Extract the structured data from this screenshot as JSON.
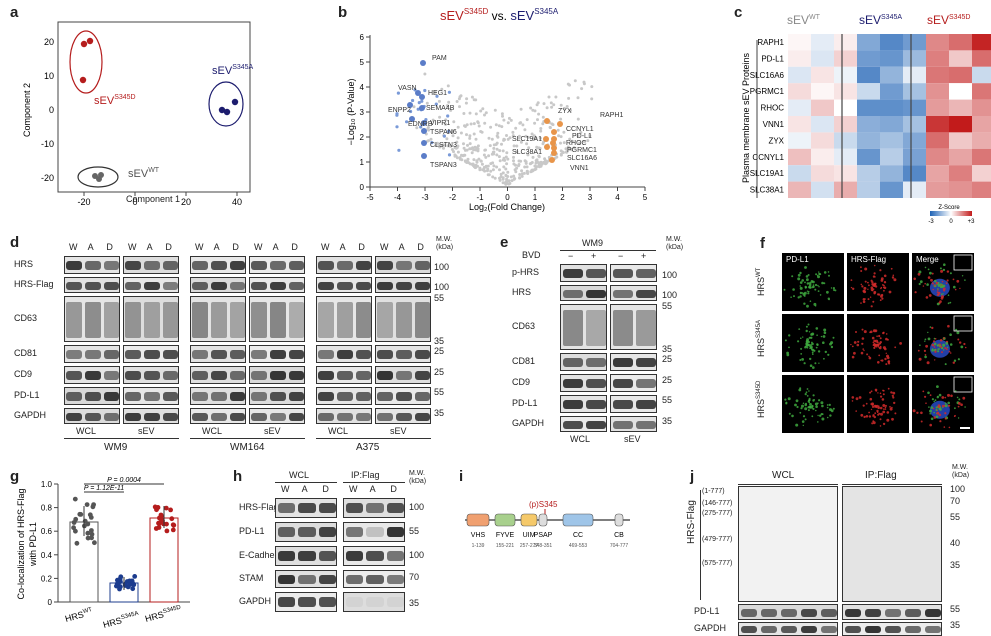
{
  "panels": {
    "a": {
      "letter": "a",
      "xlabel": "Component 1",
      "ylabel": "Component 2",
      "xticks": [
        "-20",
        "0",
        "20",
        "40"
      ],
      "yticks": [
        "20",
        "10",
        "0",
        "-10",
        "-20"
      ],
      "groups": [
        {
          "name": "sEV",
          "sup": "S345D",
          "color": "#b51d1d"
        },
        {
          "name": "sEV",
          "sup": "S345A",
          "color": "#1c1c6e"
        },
        {
          "name": "sEV",
          "sup": "WT",
          "color": "#555555"
        }
      ]
    },
    "b": {
      "letter": "b",
      "title_left": "sEV",
      "title_left_sup": "S345D",
      "title_vs": "vs.",
      "title_right": "sEV",
      "title_right_sup": "S345A",
      "xlabel": "Log₂(Fold Change)",
      "ylabel": "−Log₁₀ (P-Value)",
      "xticks": [
        "-5",
        "-4",
        "-3",
        "-2",
        "-1",
        "0",
        "1",
        "2",
        "3",
        "4",
        "5"
      ],
      "yticks": [
        "6",
        "5",
        "4",
        "3",
        "2",
        "1",
        "0"
      ],
      "down_labels": [
        "PAM",
        "VASN",
        "HEG1",
        "ENPP2",
        "SEMA4B",
        "EDNRB",
        "VIPR1",
        "TSPAN6",
        "CLSTN3",
        "TSPAN3"
      ],
      "up_labels": [
        "ZYX",
        "RAPH1",
        "CCNYL1",
        "PD-L1",
        "SLC19A1",
        "RHOC",
        "SLC38A1",
        "PGRMC1",
        "SLC16A6",
        "VNN1"
      ]
    },
    "c": {
      "letter": "c",
      "col_groups": [
        {
          "name": "sEV",
          "sup": "WT",
          "color": "#888888"
        },
        {
          "name": "sEV",
          "sup": "S345A",
          "color": "#1c1c6e"
        },
        {
          "name": "sEV",
          "sup": "S345D",
          "color": "#b51d1d"
        }
      ],
      "rows": [
        "RAPH1",
        "PD-L1",
        "SLC16A6",
        "PGRMC1",
        "RHOC",
        "VNN1",
        "ZYX",
        "CCNYL1",
        "SLC19A1",
        "SLC38A1"
      ],
      "side_label": "Plasma membrane sEV Proteins",
      "legend_title": "Z-Score",
      "legend_ticks": [
        "-3",
        "0",
        "+3"
      ]
    },
    "d": {
      "letter": "d",
      "lanes": [
        "W",
        "A",
        "D"
      ],
      "mw_header": "M.W.\n(kDa)",
      "rows": [
        "HRS",
        "HRS-Flag",
        "CD63",
        "CD81",
        "CD9",
        "PD-L1",
        "GAPDH"
      ],
      "mw": [
        "100",
        "100",
        "55",
        "35",
        "25",
        "25",
        "55",
        "35"
      ],
      "fractions": [
        "WCL",
        "sEV"
      ],
      "cell_lines": [
        "WM9",
        "WM164",
        "A375"
      ]
    },
    "e": {
      "letter": "e",
      "cell_line": "WM9",
      "treatment": "BVD",
      "signs": [
        "−",
        "+",
        "−",
        "+"
      ],
      "mw_header": "M.W.\n(kDa)",
      "rows": [
        "p-HRS",
        "HRS",
        "CD63",
        "CD81",
        "CD9",
        "PD-L1",
        "GAPDH"
      ],
      "mw": [
        "100",
        "100",
        "55",
        "35",
        "25",
        "25",
        "55",
        "35"
      ],
      "fractions": [
        "WCL",
        "sEV"
      ]
    },
    "f": {
      "letter": "f",
      "columns": [
        "PD-L1",
        "HRS-Flag",
        "Merge"
      ],
      "rows": [
        {
          "name": "HRS",
          "sup": "WT"
        },
        {
          "name": "HRS",
          "sup": "S345A"
        },
        {
          "name": "HRS",
          "sup": "S345D"
        }
      ]
    },
    "g": {
      "letter": "g",
      "ylabel": "Co-localization of HRS-Flag\nwith PD-L1",
      "yticks": [
        "1.0",
        "0.8",
        "0.6",
        "0.4",
        "0.2",
        "0"
      ],
      "p1": "P = 1.12E-11",
      "p2": "P = 0.0004",
      "groups": [
        {
          "name": "HRS",
          "sup": "WT",
          "color": "#555555"
        },
        {
          "name": "HRS",
          "sup": "S345A",
          "color": "#1c3c8e"
        },
        {
          "name": "HRS",
          "sup": "S345D",
          "color": "#b51d1d"
        }
      ]
    },
    "h": {
      "letter": "h",
      "sections": [
        "WCL",
        "IP:Flag"
      ],
      "lanes": [
        "W",
        "A",
        "D"
      ],
      "mw_header": "M.W.\n(kDa)",
      "rows": [
        "HRS-Flag",
        "PD-L1",
        "E-Cadherin",
        "STAM",
        "GAPDH"
      ],
      "mw": [
        "100",
        "55",
        "100",
        "70",
        "35"
      ]
    },
    "i": {
      "letter": "i",
      "site": "(p)S345",
      "domains": [
        {
          "name": "VHS",
          "range": "1-139",
          "color": "#f0a070"
        },
        {
          "name": "FYVE",
          "range": "155-221",
          "color": "#a8d08d"
        },
        {
          "name": "UIM",
          "range": "257-277",
          "color": "#f5c96a"
        },
        {
          "name": "PSAP",
          "range": "348-351",
          "color": "#dddddd"
        },
        {
          "name": "CC",
          "range": "469-553",
          "color": "#9fc5e8"
        },
        {
          "name": "CB",
          "range": "704-777",
          "color": "#dddddd"
        }
      ]
    },
    "j": {
      "letter": "j",
      "sections": [
        "WCL",
        "IP:Flag"
      ],
      "side_label": "HRS-Flag",
      "fragments": [
        "(1-777)",
        "(146-777)",
        "(275-777)",
        "(479-777)",
        "(575-777)"
      ],
      "mw_header": "M.W.\n(kDa)",
      "mw": [
        "100",
        "70",
        "55",
        "40",
        "35",
        "55",
        "35"
      ],
      "rows": [
        "PD-L1",
        "GAPDH"
      ]
    }
  }
}
